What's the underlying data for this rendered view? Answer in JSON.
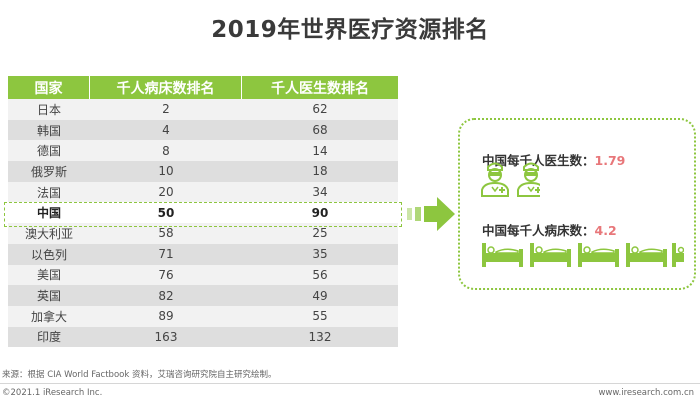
{
  "title": "2019年世界医疗资源排名",
  "chart_data": {
    "type": "table",
    "columns": [
      "国家",
      "千人病床数排名",
      "千人医生数排名"
    ],
    "rows": [
      {
        "country": "日本",
        "beds_rank": "2",
        "doctors_rank": "62"
      },
      {
        "country": "韩国",
        "beds_rank": "4",
        "doctors_rank": "68"
      },
      {
        "country": "德国",
        "beds_rank": "8",
        "doctors_rank": "14"
      },
      {
        "country": "俄罗斯",
        "beds_rank": "10",
        "doctors_rank": "18"
      },
      {
        "country": "法国",
        "beds_rank": "20",
        "doctors_rank": "34"
      },
      {
        "country": "中国",
        "beds_rank": "50",
        "doctors_rank": "90"
      },
      {
        "country": "澳大利亚",
        "beds_rank": "58",
        "doctors_rank": "25"
      },
      {
        "country": "以色列",
        "beds_rank": "71",
        "doctors_rank": "35"
      },
      {
        "country": "美国",
        "beds_rank": "76",
        "doctors_rank": "56"
      },
      {
        "country": "英国",
        "beds_rank": "82",
        "doctors_rank": "49"
      },
      {
        "country": "加拿大",
        "beds_rank": "89",
        "doctors_rank": "55"
      },
      {
        "country": "印度",
        "beds_rank": "163",
        "doctors_rank": "132"
      }
    ],
    "highlight_country": "中国"
  },
  "panel": {
    "doctors_label": "中国每千人医生数：",
    "doctors_value": "1.79",
    "beds_label": "中国每千人病床数：",
    "beds_value": "4.2",
    "doctor_icon_count": 1.79,
    "bed_icon_count": 4.2
  },
  "colors": {
    "accent_green": "#8dc63f",
    "value_red": "#e8777a"
  },
  "footer": {
    "source": "来源：根据 CIA World Factbook 资料，艾瑞咨询研究院自主研究绘制。",
    "copyright": "©2021.1 iResearch Inc.",
    "website": "www.iresearch.com.cn"
  }
}
